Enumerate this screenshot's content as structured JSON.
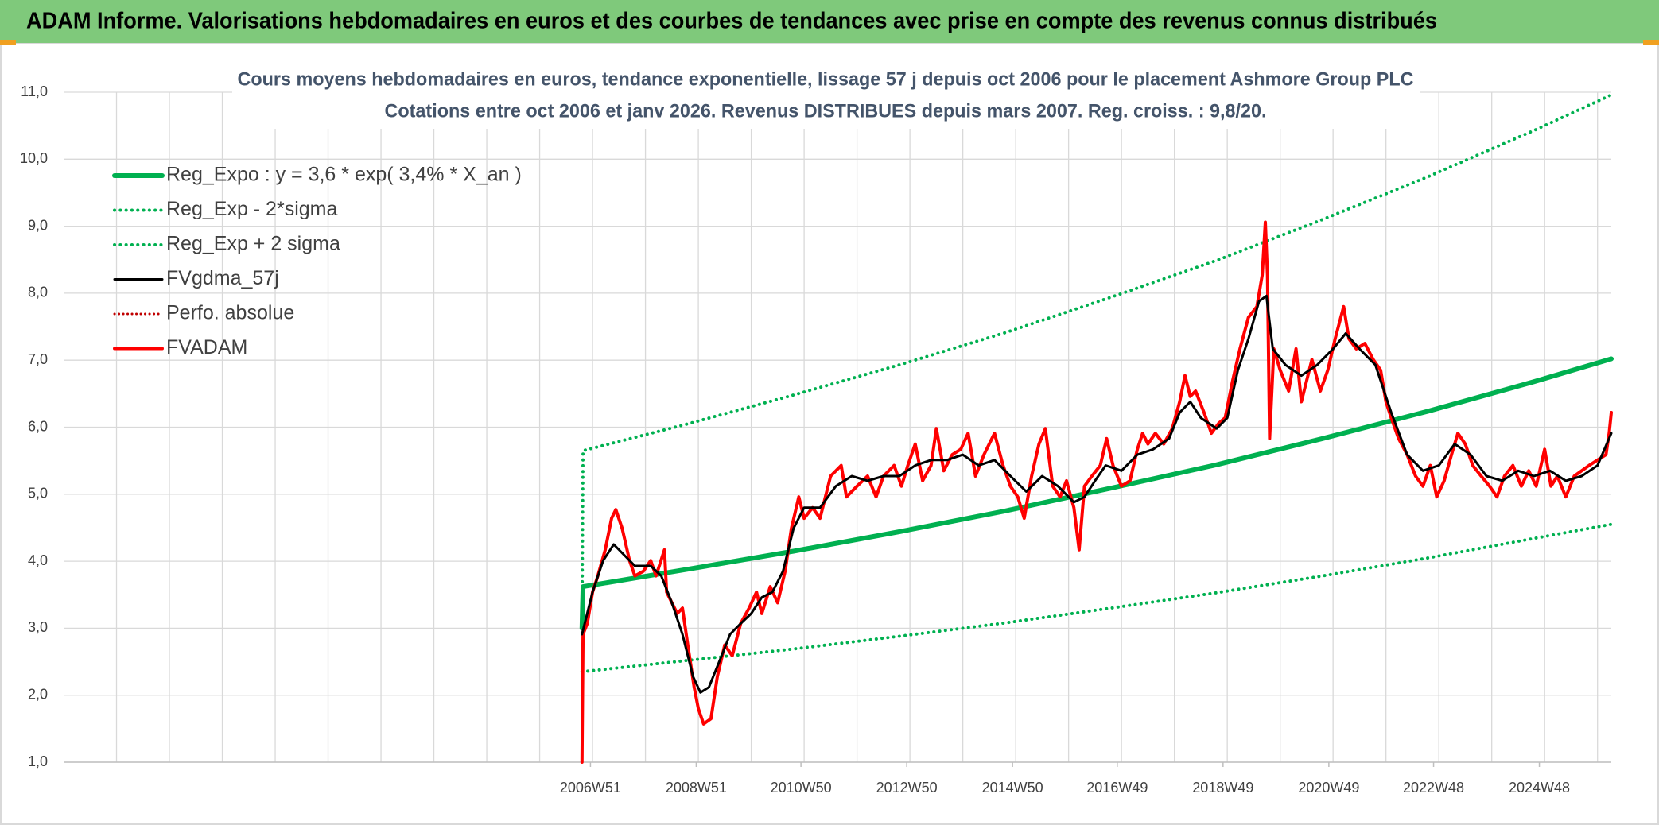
{
  "header": {
    "title": "ADAM Informe. Valorisations hebdomadaires en euros et des courbes de tendances avec prise en compte des revenus connus distribués"
  },
  "chart_data": {
    "type": "line",
    "title": [
      "Cours moyens hebdomadaires en euros, tendance exponentielle, lissage 57 j depuis oct 2006 pour le placement Ashmore Group PLC",
      "Cotations entre oct 2006 et janv 2026. Revenus DISTRIBUES depuis mars 2007. Reg. croiss. : 9,8/20."
    ],
    "xlim": [
      1997,
      2026.26
    ],
    "xticks": [
      {
        "value": 2006.96,
        "label": "2006W51"
      },
      {
        "value": 2008.96,
        "label": "2008W51"
      },
      {
        "value": 2010.94,
        "label": "2010W50"
      },
      {
        "value": 2012.94,
        "label": "2012W50"
      },
      {
        "value": 2014.94,
        "label": "2014W50"
      },
      {
        "value": 2016.92,
        "label": "2016W49"
      },
      {
        "value": 2018.92,
        "label": "2018W49"
      },
      {
        "value": 2020.92,
        "label": "2020W49"
      },
      {
        "value": 2022.9,
        "label": "2022W48"
      },
      {
        "value": 2024.9,
        "label": "2024W48"
      }
    ],
    "x_gridlines": [
      1998,
      1999,
      2000,
      2001,
      2002,
      2003,
      2004,
      2005,
      2006,
      2007,
      2008,
      2009,
      2010,
      2011,
      2012,
      2013,
      2014,
      2015,
      2016,
      2017,
      2018,
      2019,
      2020,
      2021,
      2022,
      2023,
      2024,
      2025,
      2026
    ],
    "ylim": [
      1,
      11
    ],
    "yticks": [
      {
        "value": 1,
        "label": "1,0"
      },
      {
        "value": 2,
        "label": "2,0"
      },
      {
        "value": 3,
        "label": "3,0"
      },
      {
        "value": 4,
        "label": "4,0"
      },
      {
        "value": 5,
        "label": "5,0"
      },
      {
        "value": 6,
        "label": "6,0"
      },
      {
        "value": 7,
        "label": "7,0"
      },
      {
        "value": 8,
        "label": "8,0"
      },
      {
        "value": 9,
        "label": "9,0"
      },
      {
        "value": 10,
        "label": "10,0"
      },
      {
        "value": 11,
        "label": "11,0"
      }
    ],
    "grid": true,
    "legend": "upper left",
    "series": [
      {
        "name": "Reg_Expo : y = 3,6 * exp( 3,4% * X_an )",
        "color": "#00b050",
        "line_width": 6,
        "dotted": false,
        "x": [
          2006.8,
          2006.82,
          2008.8,
          2010.8,
          2012.8,
          2014.8,
          2016.8,
          2018.8,
          2020.8,
          2022.8,
          2024.8,
          2026.26
        ],
        "values": [
          3.0,
          3.62,
          3.88,
          4.15,
          4.44,
          4.75,
          5.09,
          5.44,
          5.83,
          6.24,
          6.68,
          7.02
        ]
      },
      {
        "name": "Reg_Exp - 2*sigma",
        "color": "#00b050",
        "line_width": 4,
        "dotted": true,
        "x": [
          2006.8,
          2008.8,
          2010.8,
          2012.8,
          2014.8,
          2016.8,
          2018.8,
          2020.8,
          2022.8,
          2024.8,
          2026.26
        ],
        "values": [
          2.35,
          2.52,
          2.69,
          2.88,
          3.08,
          3.3,
          3.53,
          3.78,
          4.05,
          4.34,
          4.55
        ]
      },
      {
        "name": "Reg_Exp + 2 sigma",
        "color": "#00b050",
        "line_width": 4,
        "dotted": true,
        "x": [
          2006.8,
          2006.82,
          2008.8,
          2010.8,
          2012.8,
          2014.8,
          2016.8,
          2018.8,
          2020.8,
          2022.8,
          2024.8,
          2026.26
        ],
        "values": [
          3.0,
          5.65,
          6.05,
          6.48,
          6.93,
          7.41,
          7.94,
          8.49,
          9.1,
          9.74,
          10.43,
          10.96
        ]
      },
      {
        "name": "FVgdma_57j",
        "color": "#000000",
        "line_width": 3,
        "dotted": false,
        "x": [
          2006.8,
          2007.0,
          2007.2,
          2007.4,
          2007.6,
          2007.8,
          2008.1,
          2008.3,
          2008.5,
          2008.7,
          2008.9,
          2009.04,
          2009.2,
          2009.4,
          2009.6,
          2009.8,
          2010.0,
          2010.2,
          2010.4,
          2010.6,
          2010.8,
          2011.0,
          2011.3,
          2011.6,
          2011.9,
          2012.2,
          2012.5,
          2012.8,
          2013.1,
          2013.4,
          2013.7,
          2014.0,
          2014.3,
          2014.6,
          2014.9,
          2015.2,
          2015.5,
          2015.8,
          2016.1,
          2016.3,
          2016.5,
          2016.7,
          2017.0,
          2017.3,
          2017.6,
          2017.9,
          2018.1,
          2018.3,
          2018.5,
          2018.8,
          2019.0,
          2019.2,
          2019.4,
          2019.6,
          2019.74,
          2019.86,
          2020.1,
          2020.4,
          2020.7,
          2021.0,
          2021.24,
          2021.5,
          2021.8,
          2022.1,
          2022.4,
          2022.7,
          2023.0,
          2023.3,
          2023.6,
          2023.9,
          2024.2,
          2024.5,
          2024.8,
          2025.1,
          2025.4,
          2025.7,
          2026.0,
          2026.26
        ],
        "values": [
          2.91,
          3.54,
          4.01,
          4.25,
          4.09,
          3.93,
          3.93,
          3.78,
          3.38,
          2.91,
          2.28,
          2.04,
          2.12,
          2.51,
          2.91,
          3.07,
          3.22,
          3.46,
          3.54,
          3.85,
          4.49,
          4.8,
          4.8,
          5.12,
          5.27,
          5.2,
          5.27,
          5.27,
          5.43,
          5.51,
          5.51,
          5.59,
          5.43,
          5.51,
          5.27,
          5.04,
          5.27,
          5.12,
          4.88,
          4.96,
          5.2,
          5.43,
          5.35,
          5.59,
          5.67,
          5.83,
          6.22,
          6.38,
          6.14,
          5.98,
          6.14,
          6.85,
          7.32,
          7.88,
          7.96,
          7.17,
          6.93,
          6.77,
          6.93,
          7.17,
          7.4,
          7.17,
          6.93,
          6.22,
          5.59,
          5.35,
          5.43,
          5.75,
          5.59,
          5.27,
          5.2,
          5.35,
          5.27,
          5.35,
          5.2,
          5.27,
          5.43,
          5.91
        ]
      },
      {
        "name": "Perfo. absolue",
        "color": "#c00000",
        "line_width": 3,
        "dotted": true
      },
      {
        "name": "FVADAM",
        "color": "#ff0000",
        "line_width": 4,
        "dotted": false,
        "x": [
          2006.8,
          2006.82,
          2006.9,
          2007.0,
          2007.1,
          2007.24,
          2007.36,
          2007.44,
          2007.56,
          2007.7,
          2007.8,
          2007.96,
          2008.1,
          2008.2,
          2008.36,
          2008.4,
          2008.6,
          2008.7,
          2008.8,
          2008.92,
          2009.0,
          2009.1,
          2009.24,
          2009.36,
          2009.5,
          2009.64,
          2009.8,
          2009.96,
          2010.1,
          2010.2,
          2010.36,
          2010.5,
          2010.64,
          2010.76,
          2010.9,
          2011.0,
          2011.16,
          2011.3,
          2011.5,
          2011.7,
          2011.8,
          2012.0,
          2012.2,
          2012.36,
          2012.5,
          2012.7,
          2012.84,
          2012.96,
          2013.1,
          2013.24,
          2013.4,
          2013.5,
          2013.64,
          2013.8,
          2013.96,
          2014.1,
          2014.24,
          2014.4,
          2014.6,
          2014.76,
          2014.9,
          2015.04,
          2015.16,
          2015.3,
          2015.44,
          2015.56,
          2015.7,
          2015.84,
          2015.96,
          2016.1,
          2016.2,
          2016.3,
          2016.44,
          2016.6,
          2016.72,
          2016.84,
          2017.0,
          2017.16,
          2017.3,
          2017.4,
          2017.5,
          2017.64,
          2017.8,
          2017.96,
          2018.1,
          2018.2,
          2018.3,
          2018.4,
          2018.56,
          2018.7,
          2018.84,
          2018.96,
          2019.1,
          2019.24,
          2019.4,
          2019.56,
          2019.66,
          2019.72,
          2019.76,
          2019.8,
          2019.88,
          2020.0,
          2020.16,
          2020.3,
          2020.4,
          2020.6,
          2020.76,
          2020.9,
          2021.04,
          2021.2,
          2021.3,
          2021.44,
          2021.6,
          2021.76,
          2021.9,
          2022.0,
          2022.1,
          2022.24,
          2022.4,
          2022.56,
          2022.7,
          2022.84,
          2022.96,
          2023.1,
          2023.24,
          2023.36,
          2023.5,
          2023.64,
          2023.8,
          2023.96,
          2024.1,
          2024.24,
          2024.4,
          2024.56,
          2024.7,
          2024.84,
          2025.0,
          2025.12,
          2025.24,
          2025.4,
          2025.56,
          2025.7,
          2025.84,
          2026.0,
          2026.16,
          2026.22,
          2026.26
        ],
        "values": [
          1.0,
          2.91,
          3.07,
          3.54,
          3.78,
          4.17,
          4.64,
          4.77,
          4.49,
          4.01,
          3.78,
          3.85,
          4.01,
          3.78,
          4.17,
          3.54,
          3.22,
          3.3,
          2.75,
          2.12,
          1.8,
          1.57,
          1.65,
          2.28,
          2.75,
          2.59,
          3.07,
          3.3,
          3.54,
          3.22,
          3.62,
          3.38,
          3.85,
          4.49,
          4.96,
          4.64,
          4.8,
          4.64,
          5.27,
          5.43,
          4.96,
          5.12,
          5.27,
          4.96,
          5.27,
          5.43,
          5.12,
          5.43,
          5.75,
          5.2,
          5.43,
          5.98,
          5.35,
          5.59,
          5.67,
          5.91,
          5.27,
          5.59,
          5.91,
          5.43,
          5.12,
          4.96,
          4.64,
          5.27,
          5.75,
          5.98,
          5.12,
          4.96,
          5.2,
          4.8,
          4.17,
          5.12,
          5.27,
          5.43,
          5.83,
          5.43,
          5.12,
          5.2,
          5.67,
          5.91,
          5.75,
          5.91,
          5.75,
          5.98,
          6.38,
          6.77,
          6.46,
          6.54,
          6.22,
          5.91,
          6.06,
          6.14,
          6.69,
          7.17,
          7.64,
          7.8,
          8.27,
          9.06,
          8.27,
          5.83,
          7.17,
          6.85,
          6.54,
          7.17,
          6.38,
          7.01,
          6.54,
          6.85,
          7.32,
          7.8,
          7.32,
          7.17,
          7.25,
          7.01,
          6.85,
          6.38,
          6.14,
          5.83,
          5.59,
          5.27,
          5.12,
          5.43,
          4.96,
          5.2,
          5.59,
          5.91,
          5.75,
          5.43,
          5.27,
          5.12,
          4.96,
          5.27,
          5.43,
          5.12,
          5.35,
          5.12,
          5.67,
          5.12,
          5.27,
          4.96,
          5.27,
          5.35,
          5.43,
          5.51,
          5.59,
          5.91,
          6.22
        ]
      }
    ]
  }
}
